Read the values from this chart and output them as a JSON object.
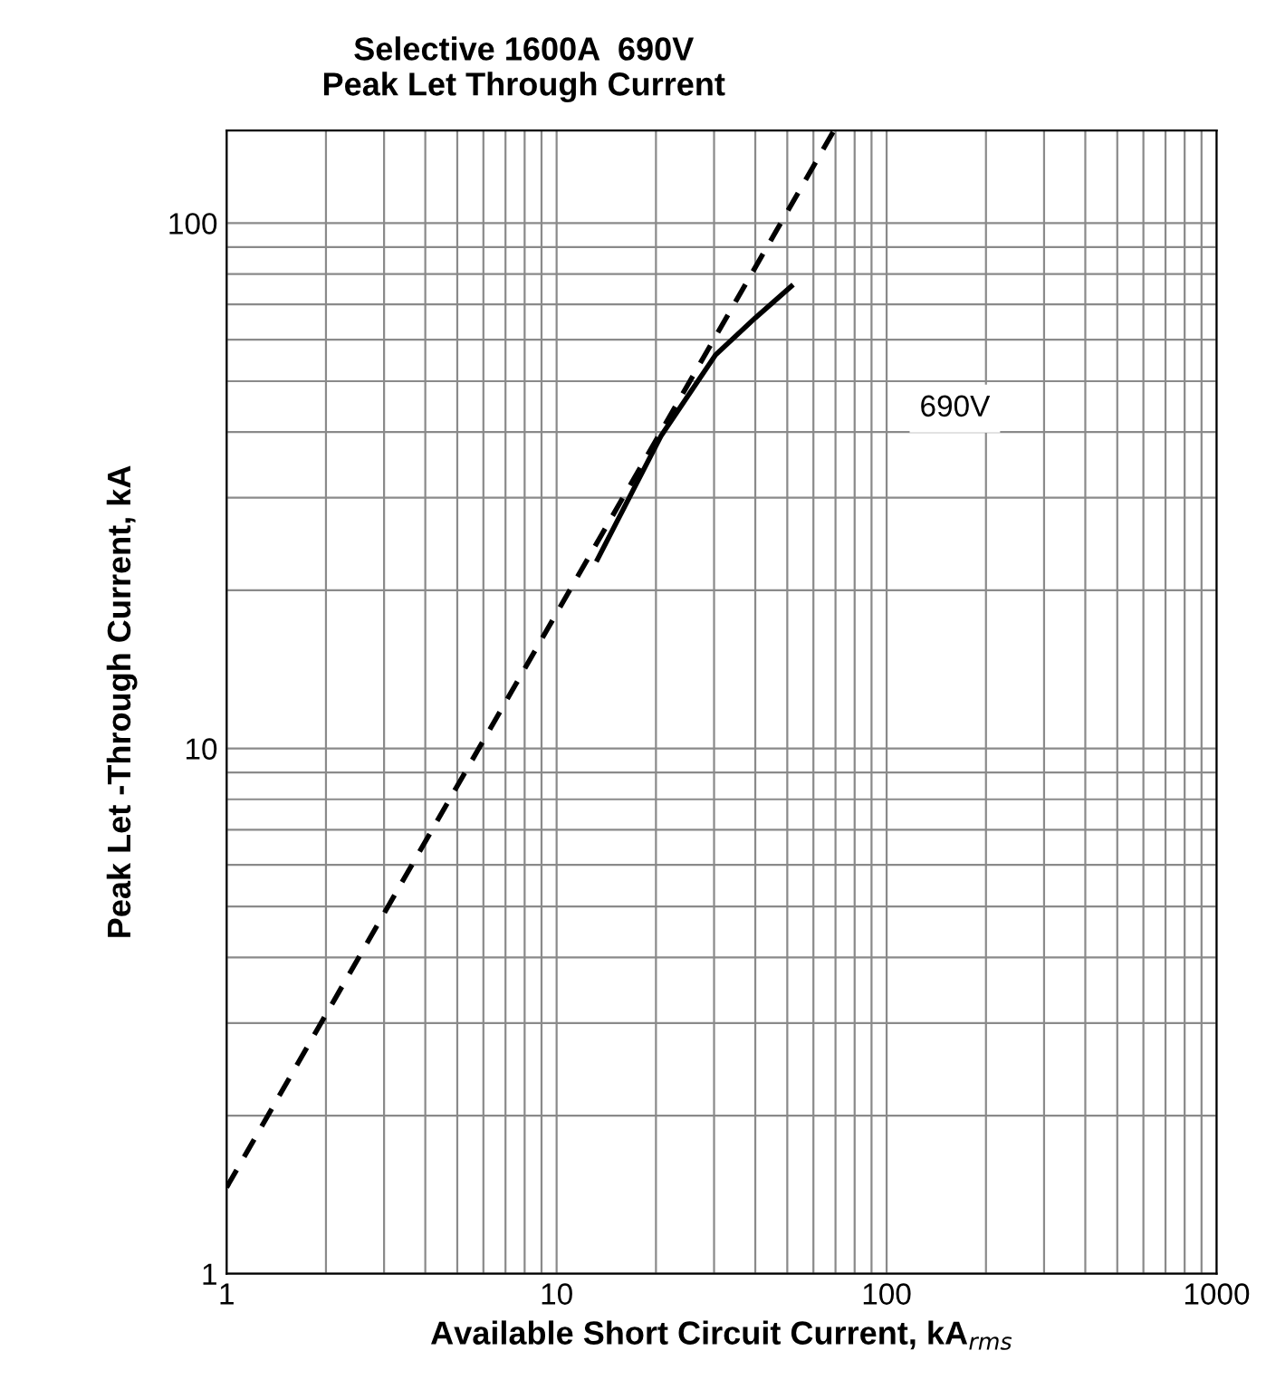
{
  "chart_data": {
    "type": "line",
    "title": "Selective 1600A  690V\nPeak Let Through Current",
    "xlabel": "Available Short Circuit Current, kA$_{rms}$",
    "ylabel": "Peak Let -Through Current, kA",
    "log": "xy",
    "xlim": [
      1,
      1000
    ],
    "ylim": [
      1,
      150
    ],
    "xticks": [
      1,
      10,
      100,
      1000
    ],
    "yticks": [
      1,
      10,
      100
    ],
    "grid": true,
    "series": [
      {
        "color": "#000000",
        "line_style": "dashed",
        "x": [
          1,
          68.8
        ],
        "values": [
          1.46,
          149
        ]
      },
      {
        "color": "#000000",
        "line_style": "solid",
        "x": [
          13.3,
          20.7,
          30.3,
          40,
          51.4
        ],
        "values": [
          22.9,
          39.3,
          56.1,
          66,
          75.8
        ]
      }
    ],
    "annotations": [
      "690V"
    ]
  }
}
